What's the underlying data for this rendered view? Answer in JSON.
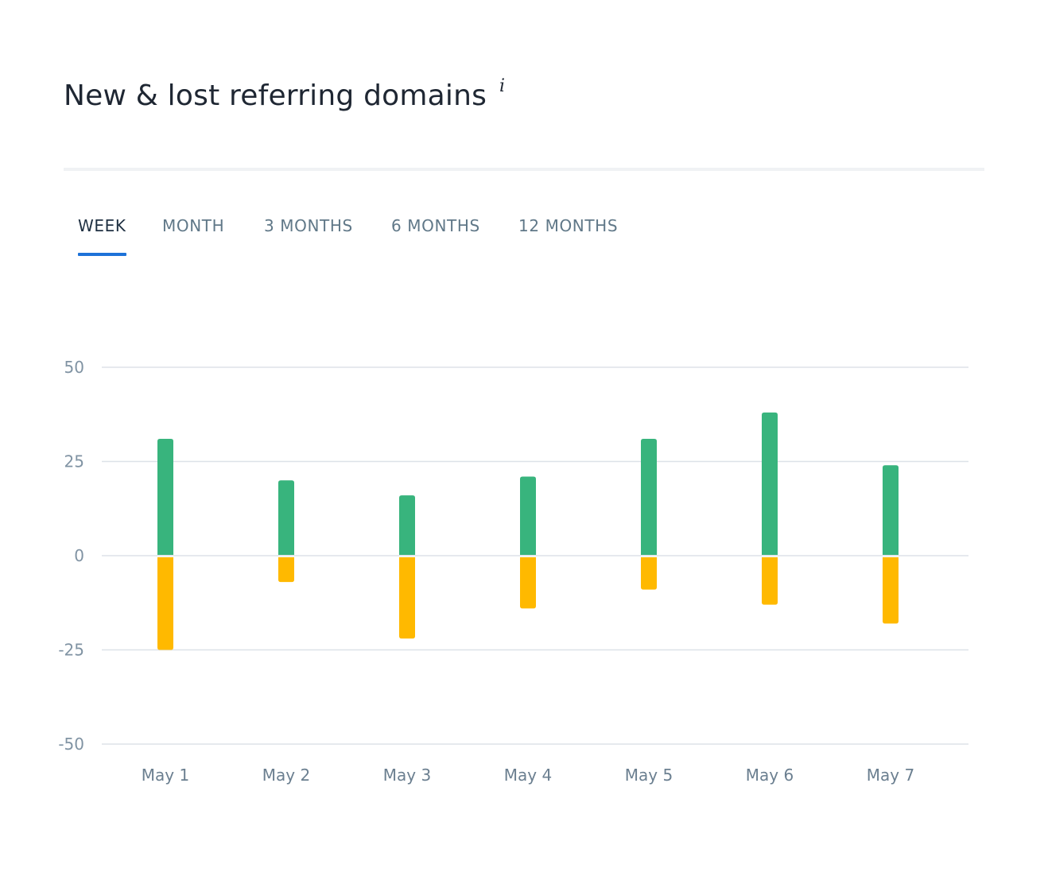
{
  "header": {
    "title": "New & lost referring domains",
    "info_icon": "i"
  },
  "tabs": [
    {
      "label": "WEEK",
      "active": true
    },
    {
      "label": "MONTH",
      "active": false
    },
    {
      "label": "3 MONTHS",
      "active": false
    },
    {
      "label": "6 MONTHS",
      "active": false
    },
    {
      "label": "12 MONTHS",
      "active": false
    }
  ],
  "colors": {
    "new": "#38b47d",
    "lost": "#ffb900",
    "grid": "#dde2e8",
    "accent": "#1d72d8"
  },
  "chart_data": {
    "type": "bar",
    "stacked": true,
    "categories": [
      "May 1",
      "May 2",
      "May 3",
      "May 4",
      "May 5",
      "May 6",
      "May 7"
    ],
    "series": [
      {
        "values": [
          31,
          20,
          16,
          21,
          31,
          38,
          24
        ]
      },
      {
        "values": [
          -25,
          -7,
          -22,
          -14,
          -9,
          -13,
          -18
        ]
      }
    ],
    "yticks": [
      50,
      25,
      0,
      -25,
      -50
    ],
    "ylim": [
      -50,
      50
    ],
    "grid": true,
    "legend": "none"
  }
}
